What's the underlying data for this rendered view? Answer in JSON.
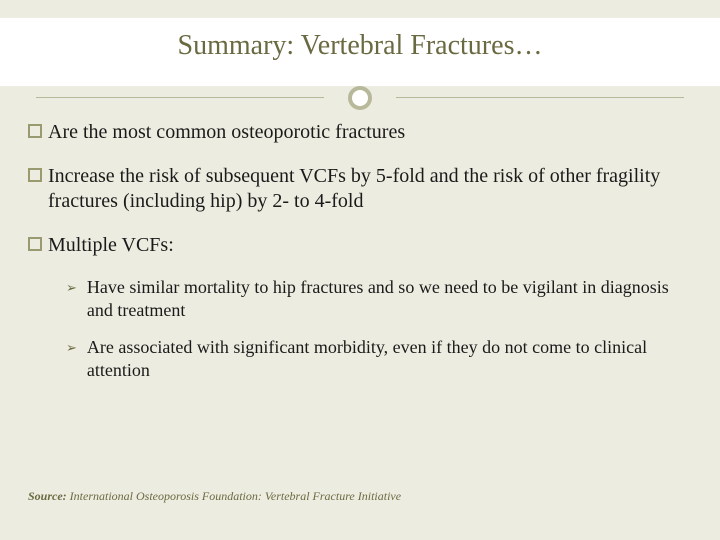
{
  "title": "Summary:  Vertebral Fractures…",
  "colors": {
    "background": "#edece0",
    "title_text": "#6a6a42",
    "divider": "#b8b89a",
    "body_text": "#1a1a1a",
    "accent": "#6a6a42",
    "square_border": "#9a9a70"
  },
  "typography": {
    "title_fontsize": 28,
    "body_fontsize": 20,
    "sub_fontsize": 18,
    "source_fontsize": 12,
    "family": "Georgia, serif"
  },
  "bullets": [
    {
      "text": "Are the most common osteoporotic fractures"
    },
    {
      "text": "Increase the risk of subsequent VCFs by 5-fold and the risk of other fragility fractures (including hip) by 2- to 4-fold"
    },
    {
      "text": "Multiple VCFs:"
    }
  ],
  "sub_bullets": [
    {
      "text": "Have similar mortality to hip fractures and so we need to be vigilant in diagnosis and treatment"
    },
    {
      "text": "Are associated with significant morbidity, even if they do not come to clinical attention"
    }
  ],
  "source": {
    "label": "Source:",
    "text": "International Osteoporosis Foundation: Vertebral Fracture Initiative"
  }
}
